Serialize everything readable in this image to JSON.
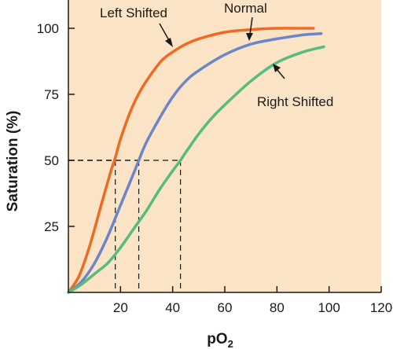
{
  "chart_data": {
    "type": "line",
    "title": "",
    "xlabel": "pO",
    "xlabel_subscript": "2",
    "ylabel": "Saturation (%)",
    "xlim": [
      0,
      120
    ],
    "ylim": [
      0,
      100
    ],
    "x_ticks": [
      20,
      40,
      60,
      80,
      100,
      120
    ],
    "y_ticks": [
      25,
      50,
      75,
      100
    ],
    "x_tick_labels": [
      "20",
      "40",
      "60",
      "80",
      "100",
      "120"
    ],
    "y_tick_labels": [
      "25",
      "50",
      "75",
      "100"
    ],
    "grid": false,
    "background_color": "#fbe3c6",
    "series": [
      {
        "name": "Left Shifted",
        "color": "#ee6a25",
        "x": [
          0,
          4,
          8,
          12,
          16,
          18,
          20,
          24,
          28,
          32,
          36,
          40,
          45,
          50,
          60,
          70,
          80,
          90,
          94
        ],
        "y": [
          0,
          6,
          17,
          31,
          45,
          51,
          58,
          69,
          77,
          83,
          88,
          91,
          94,
          96,
          98.5,
          99.5,
          100,
          100,
          100
        ]
      },
      {
        "name": "Normal",
        "color": "#6b86c8",
        "x": [
          0,
          5,
          10,
          15,
          20,
          25,
          27,
          30,
          35,
          40,
          45,
          50,
          60,
          70,
          80,
          90,
          97
        ],
        "y": [
          0,
          4,
          11,
          21,
          33,
          45,
          50,
          57,
          66,
          74,
          80,
          84,
          90,
          94,
          96,
          97.5,
          98
        ]
      },
      {
        "name": "Right Shifted",
        "color": "#57bb7d",
        "x": [
          0,
          5,
          10,
          15,
          20,
          25,
          30,
          35,
          40,
          43,
          45,
          50,
          55,
          60,
          70,
          80,
          90,
          98
        ],
        "y": [
          0,
          3,
          7,
          11,
          17,
          24,
          31,
          39,
          46,
          50,
          53,
          60,
          66,
          71,
          80,
          87,
          91,
          93
        ]
      }
    ],
    "reference_lines": [
      {
        "x": 18,
        "y": 50
      },
      {
        "x": 27,
        "y": 50
      },
      {
        "x": 43,
        "y": 50
      }
    ],
    "annotations": [
      {
        "text": "Left Shifted",
        "series": "Left Shifted"
      },
      {
        "text": "Normal",
        "series": "Normal"
      },
      {
        "text": "Right Shifted",
        "series": "Right Shifted"
      }
    ]
  }
}
